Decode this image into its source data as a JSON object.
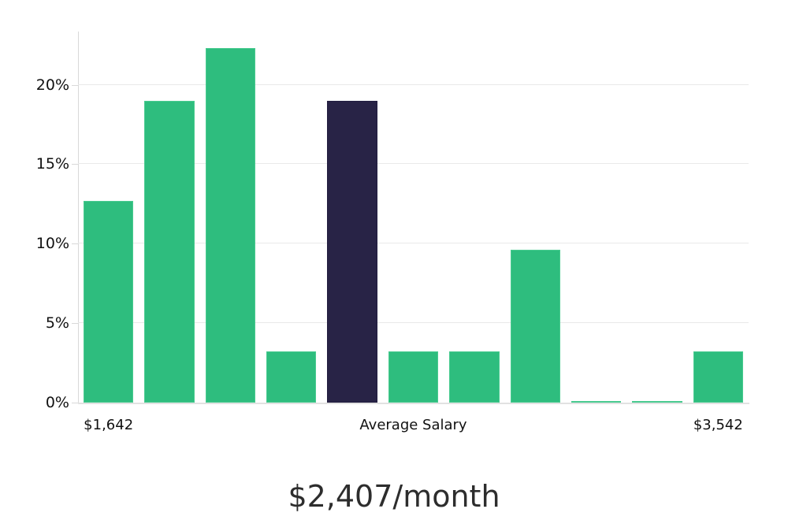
{
  "chart_data": {
    "type": "bar",
    "title": "$2,407/month",
    "categories": [
      "$1,642",
      "",
      "",
      "",
      "",
      "Average Salary",
      "",
      "",
      "",
      "",
      "$3,542"
    ],
    "values": [
      12.7,
      19.0,
      22.3,
      3.2,
      19.0,
      3.2,
      3.2,
      9.6,
      0.1,
      0.1,
      3.2
    ],
    "unit": "%",
    "highlight_index": 4,
    "xlabel": "",
    "ylabel": "",
    "y_ticks": [
      0,
      5,
      10,
      15,
      20
    ],
    "y_tick_labels": [
      "0%",
      "5%",
      "10%",
      "15%",
      "20%"
    ],
    "ylim": [
      0,
      23.35
    ],
    "grid": true,
    "legend_position": "none",
    "x_tick_labels": [
      {
        "bin_index": 0,
        "label": "$1,642"
      },
      {
        "bin_index": 5,
        "label": "Average Salary"
      },
      {
        "bin_index": 10,
        "label": "$3,542"
      }
    ],
    "colors": {
      "bar": "#2ebd7e",
      "bar_border": "#49cb90",
      "highlight": "#282346",
      "highlight_border": "#211c3f",
      "grid": "#e9e9e9",
      "axis": "#d9d9d9",
      "tick_text": "#111111",
      "title_text": "#2d2d2d"
    }
  }
}
